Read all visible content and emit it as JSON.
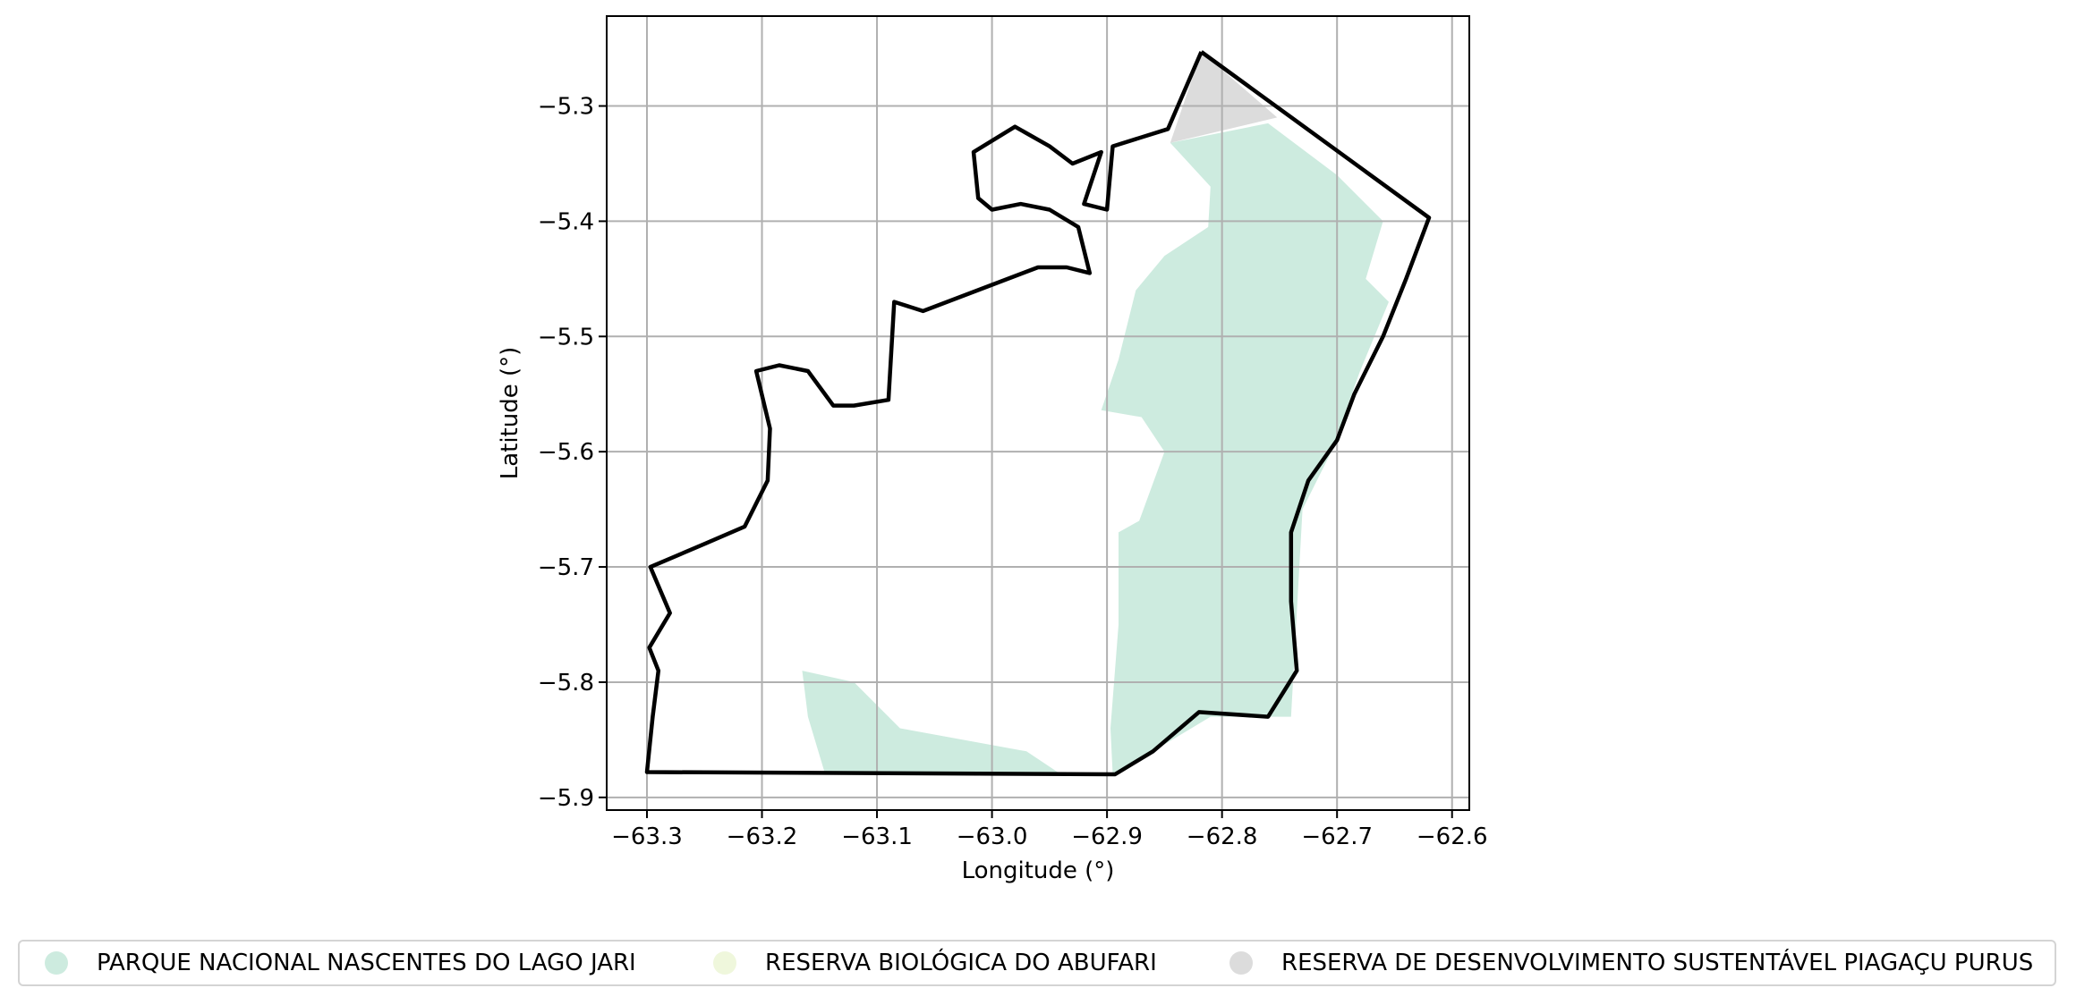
{
  "chart_data": {
    "type": "map",
    "xlabel": "Longitude (°)",
    "ylabel": "Latitude (°)",
    "xlim": [
      -63.335,
      -62.585
    ],
    "ylim": [
      -5.911,
      -5.222
    ],
    "x_ticks": [
      -63.3,
      -63.2,
      -63.1,
      -63.0,
      -62.9,
      -62.8,
      -62.7,
      -62.6
    ],
    "x_tick_labels": [
      "−63.3",
      "−63.2",
      "−63.1",
      "−63.0",
      "−62.9",
      "−62.8",
      "−62.7",
      "−62.6"
    ],
    "y_ticks": [
      -5.3,
      -5.4,
      -5.5,
      -5.6,
      -5.7,
      -5.8,
      -5.9
    ],
    "y_tick_labels": [
      "−5.3",
      "−5.4",
      "−5.5",
      "−5.6",
      "−5.7",
      "−5.8",
      "−5.9"
    ],
    "grid": true,
    "legend_position": "bottom",
    "layers": [
      {
        "name": "PARQUE NACIONAL NASCENTES DO LAGO JARI",
        "color": "#cdebdf",
        "polygons": [
          [
            [
              -62.845,
              -5.332
            ],
            [
              -62.76,
              -5.315
            ],
            [
              -62.7,
              -5.36
            ],
            [
              -62.66,
              -5.4
            ],
            [
              -62.675,
              -5.45
            ],
            [
              -62.655,
              -5.47
            ],
            [
              -62.68,
              -5.53
            ],
            [
              -62.705,
              -5.6
            ],
            [
              -62.73,
              -5.65
            ],
            [
              -62.735,
              -5.74
            ],
            [
              -62.74,
              -5.83
            ],
            [
              -62.81,
              -5.83
            ],
            [
              -62.86,
              -5.86
            ],
            [
              -62.895,
              -5.88
            ],
            [
              -62.897,
              -5.84
            ],
            [
              -62.89,
              -5.75
            ],
            [
              -62.89,
              -5.67
            ],
            [
              -62.872,
              -5.66
            ],
            [
              -62.85,
              -5.6
            ],
            [
              -62.87,
              -5.57
            ],
            [
              -62.905,
              -5.564
            ],
            [
              -62.89,
              -5.52
            ],
            [
              -62.875,
              -5.46
            ],
            [
              -62.85,
              -5.43
            ],
            [
              -62.812,
              -5.405
            ],
            [
              -62.81,
              -5.37
            ]
          ],
          [
            [
              -63.165,
              -5.79
            ],
            [
              -63.12,
              -5.8
            ],
            [
              -63.08,
              -5.84
            ],
            [
              -62.97,
              -5.86
            ],
            [
              -62.94,
              -5.88
            ],
            [
              -63.145,
              -5.88
            ],
            [
              -63.16,
              -5.83
            ]
          ]
        ]
      },
      {
        "name": "RESERVA BIOLÓGICA DO ABUFARI",
        "color": "#eff7dc",
        "polygons": []
      },
      {
        "name": "RESERVA DE DESENVOLVIMENTO SUSTENTÁVEL PIAGAÇU PURUS",
        "color": "#dcdcdc",
        "polygons": [
          [
            [
              -62.818,
              -5.253
            ],
            [
              -62.752,
              -5.31
            ],
            [
              -62.845,
              -5.332
            ]
          ]
        ]
      }
    ],
    "outline": {
      "color": "#000000",
      "points": [
        [
          -62.818,
          -5.253
        ],
        [
          -62.62,
          -5.397
        ],
        [
          -62.64,
          -5.45
        ],
        [
          -62.66,
          -5.5
        ],
        [
          -62.685,
          -5.55
        ],
        [
          -62.7,
          -5.59
        ],
        [
          -62.725,
          -5.625
        ],
        [
          -62.74,
          -5.67
        ],
        [
          -62.74,
          -5.73
        ],
        [
          -62.735,
          -5.79
        ],
        [
          -62.76,
          -5.83
        ],
        [
          -62.82,
          -5.826
        ],
        [
          -62.86,
          -5.86
        ],
        [
          -62.893,
          -5.88
        ],
        [
          -63.3,
          -5.878
        ],
        [
          -63.295,
          -5.83
        ],
        [
          -63.29,
          -5.79
        ],
        [
          -63.298,
          -5.77
        ],
        [
          -63.28,
          -5.74
        ],
        [
          -63.297,
          -5.7
        ],
        [
          -63.25,
          -5.68
        ],
        [
          -63.215,
          -5.665
        ],
        [
          -63.195,
          -5.625
        ],
        [
          -63.193,
          -5.58
        ],
        [
          -63.205,
          -5.53
        ],
        [
          -63.185,
          -5.525
        ],
        [
          -63.16,
          -5.53
        ],
        [
          -63.138,
          -5.56
        ],
        [
          -63.12,
          -5.56
        ],
        [
          -63.09,
          -5.555
        ],
        [
          -63.085,
          -5.47
        ],
        [
          -63.06,
          -5.478
        ],
        [
          -62.96,
          -5.44
        ],
        [
          -62.935,
          -5.44
        ],
        [
          -62.915,
          -5.445
        ],
        [
          -62.925,
          -5.405
        ],
        [
          -62.95,
          -5.39
        ],
        [
          -62.975,
          -5.385
        ],
        [
          -63.0,
          -5.39
        ],
        [
          -63.012,
          -5.38
        ],
        [
          -63.016,
          -5.34
        ],
        [
          -62.98,
          -5.318
        ],
        [
          -62.95,
          -5.335
        ],
        [
          -62.93,
          -5.35
        ],
        [
          -62.905,
          -5.34
        ],
        [
          -62.92,
          -5.385
        ],
        [
          -62.9,
          -5.39
        ],
        [
          -62.895,
          -5.335
        ],
        [
          -62.847,
          -5.32
        ],
        [
          -62.818,
          -5.253
        ]
      ]
    }
  }
}
